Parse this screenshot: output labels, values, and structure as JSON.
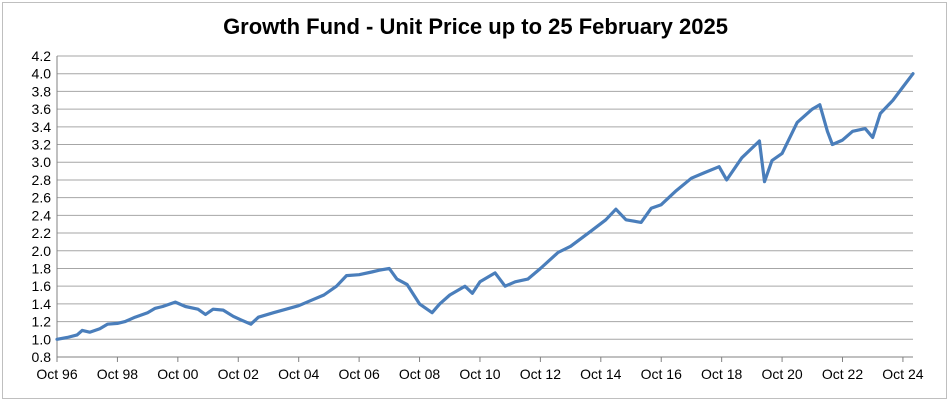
{
  "chart_data": {
    "type": "line",
    "title": "Growth Fund - Unit Price up to 25 February 2025",
    "xlabel": "",
    "ylabel": "",
    "ylim": [
      0.8,
      4.2
    ],
    "xlim": [
      "1996-10",
      "2025-02"
    ],
    "grid": true,
    "legend": "none",
    "x_ticks": [
      "Oct 96",
      "Oct 98",
      "Oct 00",
      "Oct 02",
      "Oct 04",
      "Oct 06",
      "Oct 08",
      "Oct 10",
      "Oct 12",
      "Oct 14",
      "Oct 16",
      "Oct 18",
      "Oct 20",
      "Oct 22",
      "Oct 24"
    ],
    "y_ticks": [
      "0.8",
      "1.0",
      "1.2",
      "1.4",
      "1.6",
      "1.8",
      "2.0",
      "2.2",
      "2.4",
      "2.6",
      "2.8",
      "3.0",
      "3.2",
      "3.4",
      "3.6",
      "3.8",
      "4.0",
      "4.2"
    ],
    "series": [
      {
        "color": "#4a7ebb",
        "points": [
          [
            "1996-10",
            1.0
          ],
          [
            "1997-02",
            1.02
          ],
          [
            "1997-06",
            1.05
          ],
          [
            "1997-08",
            1.1
          ],
          [
            "1997-11",
            1.08
          ],
          [
            "1998-03",
            1.12
          ],
          [
            "1998-06",
            1.17
          ],
          [
            "1998-10",
            1.18
          ],
          [
            "1999-01",
            1.2
          ],
          [
            "1999-05",
            1.25
          ],
          [
            "1999-10",
            1.3
          ],
          [
            "2000-01",
            1.35
          ],
          [
            "2000-04",
            1.37
          ],
          [
            "2000-09",
            1.42
          ],
          [
            "2001-01",
            1.37
          ],
          [
            "2001-06",
            1.34
          ],
          [
            "2001-09",
            1.28
          ],
          [
            "2001-12",
            1.34
          ],
          [
            "2002-04",
            1.33
          ],
          [
            "2002-08",
            1.26
          ],
          [
            "2002-11",
            1.22
          ],
          [
            "2003-03",
            1.17
          ],
          [
            "2003-06",
            1.25
          ],
          [
            "2003-12",
            1.3
          ],
          [
            "2004-05",
            1.34
          ],
          [
            "2004-10",
            1.38
          ],
          [
            "2005-03",
            1.44
          ],
          [
            "2005-08",
            1.5
          ],
          [
            "2006-01",
            1.6
          ],
          [
            "2006-05",
            1.72
          ],
          [
            "2006-10",
            1.73
          ],
          [
            "2007-03",
            1.76
          ],
          [
            "2007-06",
            1.78
          ],
          [
            "2007-10",
            1.8
          ],
          [
            "2008-01",
            1.68
          ],
          [
            "2008-05",
            1.62
          ],
          [
            "2008-10",
            1.4
          ],
          [
            "2009-03",
            1.3
          ],
          [
            "2009-06",
            1.4
          ],
          [
            "2009-10",
            1.5
          ],
          [
            "2010-04",
            1.6
          ],
          [
            "2010-07",
            1.52
          ],
          [
            "2010-10",
            1.65
          ],
          [
            "2011-04",
            1.75
          ],
          [
            "2011-08",
            1.6
          ],
          [
            "2011-12",
            1.65
          ],
          [
            "2012-05",
            1.68
          ],
          [
            "2012-10",
            1.8
          ],
          [
            "2013-05",
            1.98
          ],
          [
            "2013-10",
            2.05
          ],
          [
            "2014-06",
            2.22
          ],
          [
            "2014-12",
            2.35
          ],
          [
            "2015-04",
            2.47
          ],
          [
            "2015-08",
            2.35
          ],
          [
            "2016-02",
            2.32
          ],
          [
            "2016-06",
            2.48
          ],
          [
            "2016-10",
            2.52
          ],
          [
            "2017-04",
            2.68
          ],
          [
            "2017-10",
            2.82
          ],
          [
            "2018-03",
            2.88
          ],
          [
            "2018-09",
            2.95
          ],
          [
            "2018-12",
            2.8
          ],
          [
            "2019-06",
            3.05
          ],
          [
            "2020-01",
            3.24
          ],
          [
            "2020-03",
            2.78
          ],
          [
            "2020-06",
            3.02
          ],
          [
            "2020-10",
            3.1
          ],
          [
            "2021-04",
            3.45
          ],
          [
            "2021-10",
            3.6
          ],
          [
            "2022-01",
            3.65
          ],
          [
            "2022-04",
            3.35
          ],
          [
            "2022-06",
            3.2
          ],
          [
            "2022-10",
            3.25
          ],
          [
            "2023-02",
            3.35
          ],
          [
            "2023-07",
            3.38
          ],
          [
            "2023-10",
            3.28
          ],
          [
            "2024-01",
            3.55
          ],
          [
            "2024-06",
            3.7
          ],
          [
            "2024-10",
            3.85
          ],
          [
            "2025-02",
            4.0
          ]
        ]
      }
    ]
  }
}
